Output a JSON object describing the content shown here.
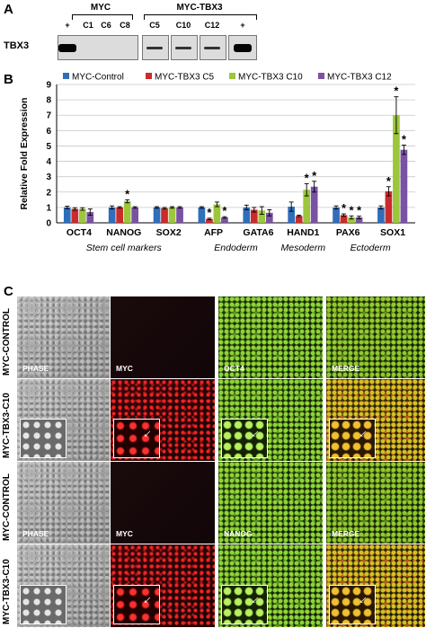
{
  "panel_labels": {
    "a": "A",
    "b": "B",
    "c": "C"
  },
  "western": {
    "row_label": "TBX3",
    "groups": [
      {
        "title": "MYC"
      },
      {
        "title": "MYC-TBX3"
      }
    ],
    "lanes": [
      {
        "label": "+",
        "band": "strong"
      },
      {
        "label": "C1",
        "band": "none"
      },
      {
        "label": "C6",
        "band": "none"
      },
      {
        "label": "C8",
        "band": "none"
      },
      {
        "label": "C5",
        "band": "weak"
      },
      {
        "label": "C10",
        "band": "weak"
      },
      {
        "label": "C12",
        "band": "weak"
      },
      {
        "label": "+",
        "band": "strong"
      }
    ]
  },
  "chart_data": {
    "type": "bar",
    "ylabel": "Relative Fold Expression",
    "ylim": [
      0,
      9
    ],
    "yticks": [
      0,
      1,
      2,
      3,
      4,
      5,
      6,
      7,
      8,
      9
    ],
    "grid": true,
    "legend_position": "top",
    "categories": [
      "OCT4",
      "NANOG",
      "SOX2",
      "AFP",
      "GATA6",
      "HAND1",
      "PAX6",
      "SOX1"
    ],
    "series": [
      {
        "name": "MYC-Control",
        "color": "#2f6eba",
        "values": [
          1.0,
          1.0,
          1.0,
          1.0,
          1.0,
          1.05,
          1.0,
          1.0
        ],
        "errors": [
          0.08,
          0.1,
          0.05,
          0.05,
          0.15,
          0.3,
          0.1,
          0.1
        ],
        "sig": [
          false,
          false,
          false,
          false,
          false,
          false,
          false,
          false
        ]
      },
      {
        "name": "MYC-TBX3 C5",
        "color": "#cc2b2b",
        "values": [
          0.9,
          1.0,
          0.95,
          0.25,
          0.85,
          0.45,
          0.5,
          2.05
        ],
        "errors": [
          0.08,
          0.05,
          0.05,
          0.05,
          0.15,
          0.05,
          0.08,
          0.3
        ],
        "sig": [
          false,
          false,
          false,
          true,
          false,
          false,
          true,
          true
        ]
      },
      {
        "name": "MYC-TBX3 C10",
        "color": "#9cc63b",
        "values": [
          0.9,
          1.4,
          1.0,
          1.2,
          0.8,
          2.15,
          0.35,
          7.0
        ],
        "errors": [
          0.08,
          0.1,
          0.05,
          0.15,
          0.25,
          0.4,
          0.1,
          1.2
        ],
        "sig": [
          false,
          true,
          false,
          false,
          false,
          true,
          true,
          true
        ]
      },
      {
        "name": "MYC-TBX3 C12",
        "color": "#7a52a3",
        "values": [
          0.7,
          1.0,
          1.0,
          0.35,
          0.65,
          2.35,
          0.35,
          4.75
        ],
        "errors": [
          0.2,
          0.05,
          0.05,
          0.05,
          0.2,
          0.35,
          0.08,
          0.3
        ],
        "sig": [
          false,
          false,
          false,
          true,
          false,
          true,
          true,
          true
        ]
      }
    ],
    "significance_marker": "*",
    "category_groups": [
      {
        "label": "Stem cell markers",
        "categories": [
          "OCT4",
          "NANOG",
          "SOX2"
        ]
      },
      {
        "label": "Endoderm",
        "categories": [
          "AFP",
          "GATA6"
        ]
      },
      {
        "label": "Mesoderm",
        "categories": [
          "HAND1"
        ]
      },
      {
        "label": "Ectoderm",
        "categories": [
          "PAX6",
          "SOX1"
        ]
      }
    ]
  },
  "micrographs": {
    "rows": [
      {
        "label": "MYC-CONTROL",
        "cells": [
          {
            "channel": "phase",
            "label": "PHASE",
            "inset": false
          },
          {
            "channel": "myc-dim",
            "label": "MYC",
            "inset": false
          },
          {
            "channel": "green",
            "label": "OCT4",
            "inset": false
          },
          {
            "channel": "merge-green",
            "label": "MERGE",
            "inset": false
          }
        ]
      },
      {
        "label": "MYC-TBX3-C10",
        "cells": [
          {
            "channel": "phase",
            "label": "",
            "inset": true
          },
          {
            "channel": "red",
            "label": "",
            "inset": true
          },
          {
            "channel": "green",
            "label": "",
            "inset": true
          },
          {
            "channel": "merge",
            "label": "",
            "inset": true
          }
        ]
      },
      {
        "label": "MYC-CONTROL",
        "cells": [
          {
            "channel": "phase",
            "label": "PHASE",
            "inset": false
          },
          {
            "channel": "myc-dim",
            "label": "MYC",
            "inset": false
          },
          {
            "channel": "green",
            "label": "NANOG",
            "inset": false
          },
          {
            "channel": "merge-green",
            "label": "MERGE",
            "inset": false
          }
        ]
      },
      {
        "label": "MYC-TBX3-C10",
        "cells": [
          {
            "channel": "phase",
            "label": "",
            "inset": true
          },
          {
            "channel": "red",
            "label": "",
            "inset": true
          },
          {
            "channel": "green",
            "label": "",
            "inset": true
          },
          {
            "channel": "merge",
            "label": "",
            "inset": true
          }
        ]
      }
    ]
  }
}
